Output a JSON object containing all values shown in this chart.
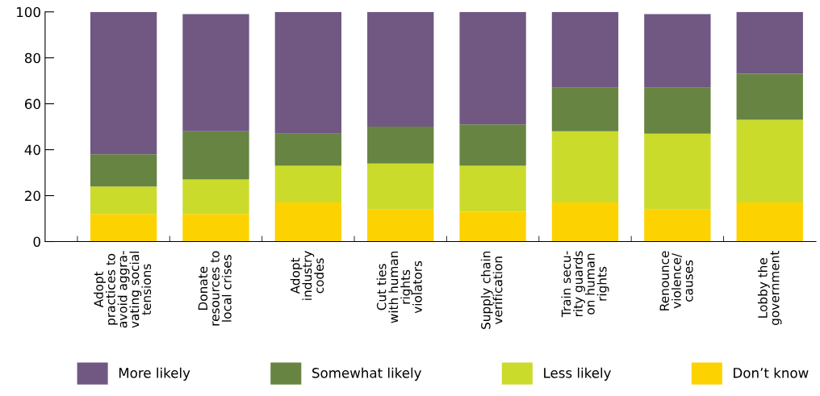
{
  "chart_data": {
    "type": "bar",
    "stacked": true,
    "categories": [
      "Adopt\npractices to\navoid aggra-\nvating social\ntensions",
      "Donate\nresources to\nlocal crises",
      "Adopt\nindustry\ncodes",
      "Cut ties\nwith human\nrights\nviolators",
      "Supply chain\nverification",
      "Train secu-\nrity guards\non human\nrights",
      "Renounce\nviolence/\ncauses",
      "Lobby the\ngovernment"
    ],
    "series": [
      {
        "name": "Don’t know",
        "color": "#fdd201",
        "values": [
          12,
          12,
          17,
          14,
          13,
          17,
          14,
          17
        ]
      },
      {
        "name": "Less likely",
        "color": "#cbdb2c",
        "values": [
          12,
          15,
          16,
          20,
          20,
          31,
          33,
          36
        ]
      },
      {
        "name": "Somewhat likely",
        "color": "#678442",
        "values": [
          14,
          21,
          14,
          16,
          18,
          19,
          20,
          20
        ]
      },
      {
        "name": "More likely",
        "color": "#705882",
        "values": [
          62,
          51,
          53,
          50,
          49,
          33,
          32,
          27
        ]
      }
    ],
    "ylim": [
      0,
      100
    ],
    "yticks": [
      0,
      20,
      40,
      60,
      80,
      100
    ],
    "grid": false,
    "legend": "bottom"
  }
}
